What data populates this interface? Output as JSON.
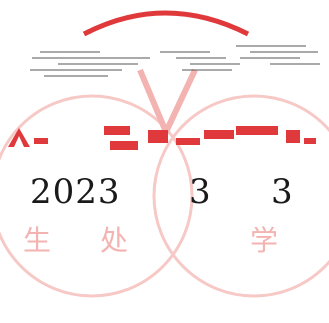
{
  "stamp": {
    "seal_text": "学生处",
    "colors": {
      "seal_red": "#e0393b",
      "seal_faint": "#f6c9c6",
      "text": "#1a1a1a"
    }
  },
  "date": {
    "year": "2023",
    "month": "3",
    "day": "3"
  }
}
